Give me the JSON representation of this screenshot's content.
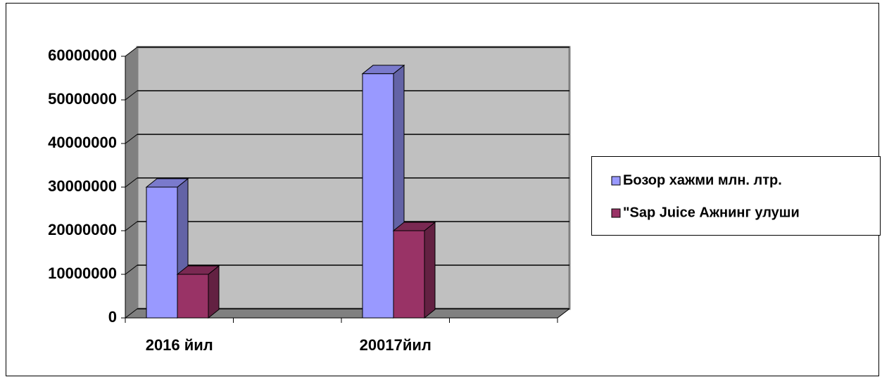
{
  "chart_data": {
    "type": "bar3d",
    "categories": [
      "2016 йил",
      null,
      "20017йил",
      null
    ],
    "series": [
      {
        "name": "Бозор хажми млн. лтр.",
        "color": "#9999ff",
        "values": [
          30000000,
          null,
          56000000,
          null
        ]
      },
      {
        "name": "\"Sap Juice Ажнинг улуши",
        "color": "#993366",
        "values": [
          10000000,
          null,
          20000000,
          null
        ]
      }
    ],
    "ylim": [
      0,
      60000000
    ],
    "yticks": [
      0,
      10000000,
      20000000,
      30000000,
      40000000,
      50000000,
      60000000
    ],
    "grid": true,
    "legend": "right"
  }
}
